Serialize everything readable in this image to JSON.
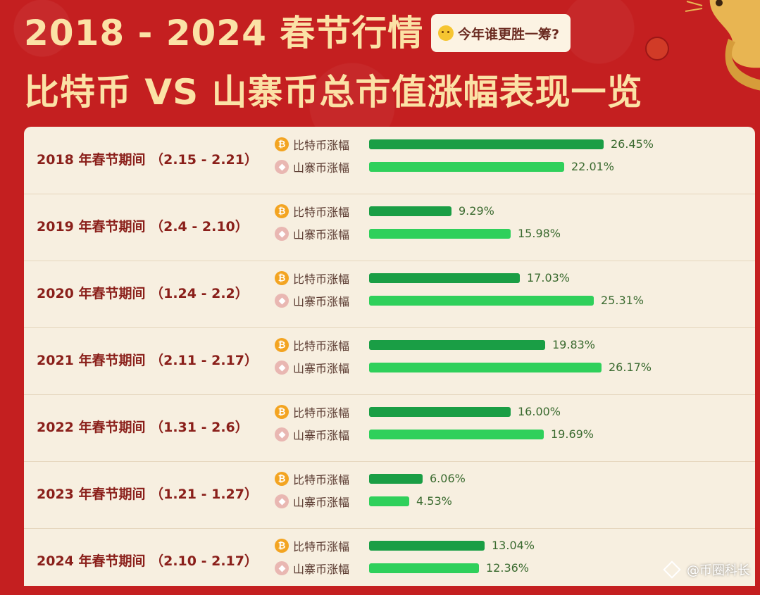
{
  "header": {
    "title_line1": "2018 - 2024 春节行情",
    "question": "今年谁更胜一筹?",
    "title_line2": "比特币 VS 山寨币总市值涨幅表现一览"
  },
  "legend": {
    "btc_label": "比特币涨幅",
    "alt_label": "山寨币涨幅",
    "btc_icon": "bitcoin-icon",
    "alt_icon": "altcoin-icon"
  },
  "colors": {
    "background": "#c41f20",
    "btc_bar": "#1a9e45",
    "alt_bar": "#2fd05b",
    "title": "#fbe2a6"
  },
  "chart_data": {
    "type": "bar",
    "orientation": "horizontal",
    "categories": [
      "2018 年春节期间 （2.15 - 2.21）",
      "2019 年春节期间 （2.4 - 2.10）",
      "2020 年春节期间 （1.24 - 2.2）",
      "2021 年春节期间 （2.11 - 2.17）",
      "2022 年春节期间 （1.31 - 2.6）",
      "2023 年春节期间 （1.21 - 1.27）",
      "2024 年春节期间 （2.10 - 2.17）"
    ],
    "series": [
      {
        "name": "比特币涨幅",
        "values": [
          26.45,
          9.29,
          17.03,
          19.83,
          16.0,
          6.06,
          13.04
        ],
        "labels": [
          "26.45%",
          "9.29%",
          "17.03%",
          "19.83%",
          "16.00%",
          "6.06%",
          "13.04%"
        ]
      },
      {
        "name": "山寨币涨幅",
        "values": [
          22.01,
          15.98,
          25.31,
          26.17,
          19.69,
          4.53,
          12.36
        ],
        "labels": [
          "22.01%",
          "15.98%",
          "25.31%",
          "26.17%",
          "19.69%",
          "4.53%",
          "12.36%"
        ]
      }
    ],
    "xlim": [
      0,
      27
    ]
  },
  "watermark": "@币圈科长"
}
